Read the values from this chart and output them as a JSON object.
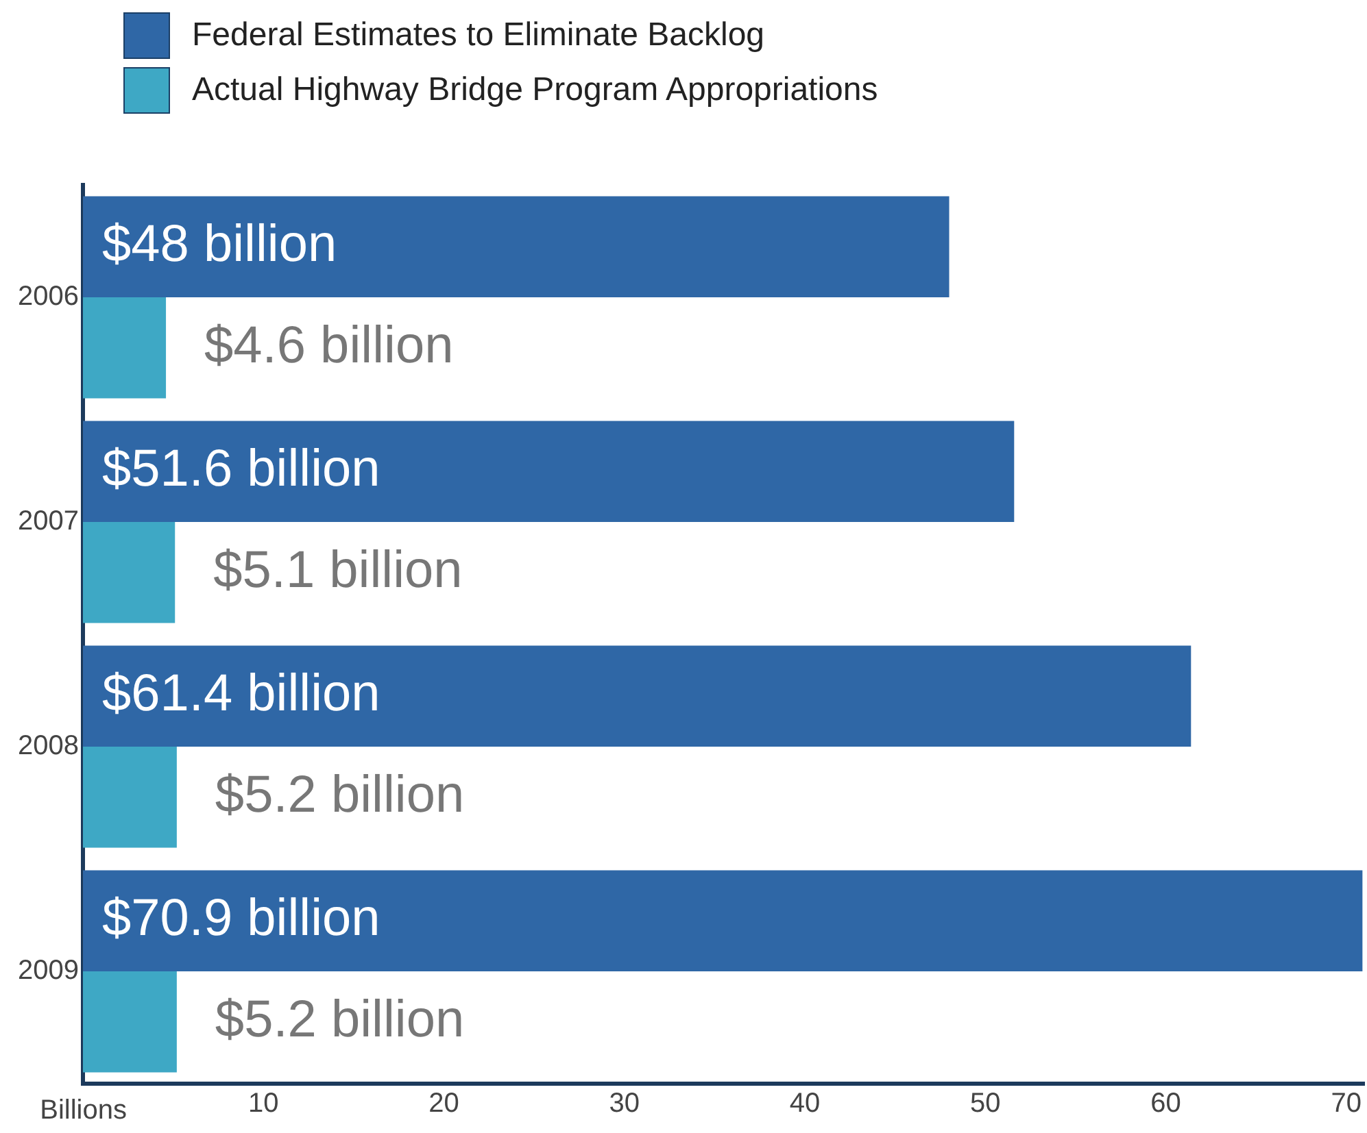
{
  "chart_data": {
    "type": "bar",
    "orientation": "horizontal",
    "categories": [
      "2006",
      "2007",
      "2008",
      "2009"
    ],
    "series": [
      {
        "name": "Federal Estimates to Eliminate Backlog",
        "color": "#2f67a6",
        "values": [
          48,
          51.6,
          61.4,
          70.9
        ],
        "value_labels": [
          "$48 billion",
          "$51.6 billion",
          "$61.4 billion",
          "$70.9 billion"
        ]
      },
      {
        "name": "Actual Highway Bridge Program Appropriations",
        "color": "#3ea8c5",
        "values": [
          4.6,
          5.1,
          5.2,
          5.2
        ],
        "value_labels": [
          "$4.6 billion",
          "$5.1 billion",
          "$5.2 billion",
          "$5.2 billion"
        ]
      }
    ],
    "xlabel": "Billions",
    "xlim": [
      0,
      71
    ],
    "xticks": [
      10,
      20,
      30,
      40,
      50,
      60,
      70
    ],
    "grid": false,
    "legend": "top left"
  }
}
